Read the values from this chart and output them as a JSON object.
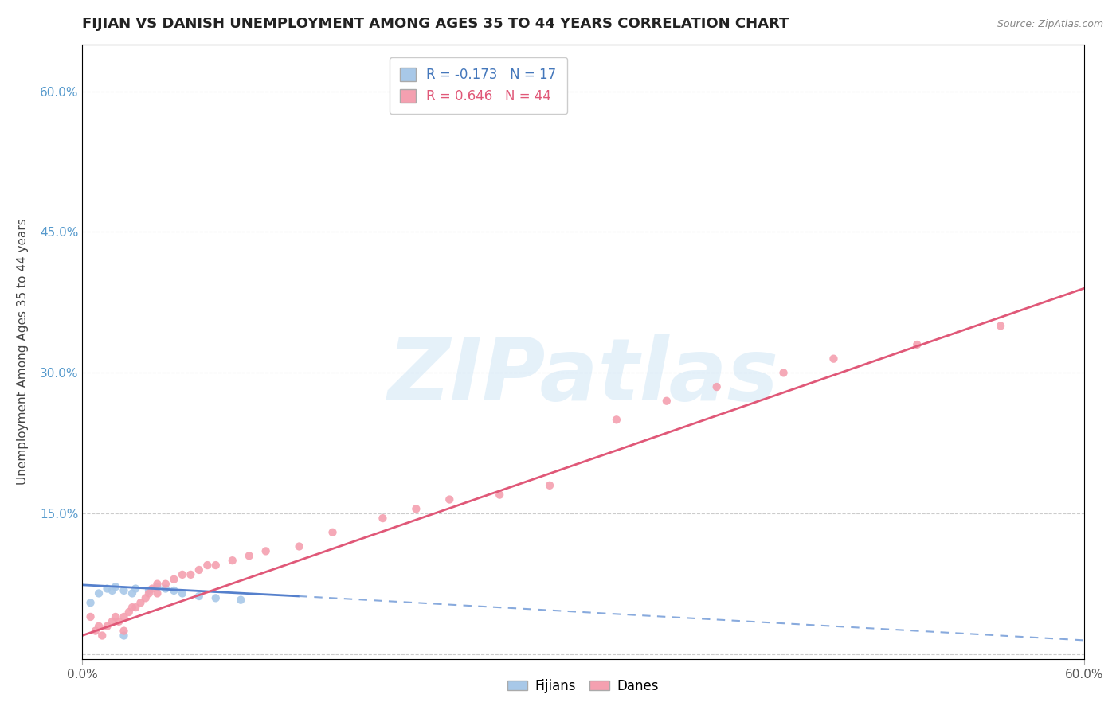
{
  "title": "FIJIAN VS DANISH UNEMPLOYMENT AMONG AGES 35 TO 44 YEARS CORRELATION CHART",
  "source_text": "Source: ZipAtlas.com",
  "ylabel": "Unemployment Among Ages 35 to 44 years",
  "xlim": [
    0.0,
    0.6
  ],
  "ylim": [
    -0.005,
    0.65
  ],
  "ytick_positions": [
    0.0,
    0.15,
    0.3,
    0.45,
    0.6
  ],
  "ytick_labels": [
    "",
    "15.0%",
    "30.0%",
    "45.0%",
    "60.0%"
  ],
  "fijian_color": "#a8c8e8",
  "dane_color": "#f4a0b0",
  "fijian_line_color": "#5580cc",
  "dane_line_color": "#e05878",
  "fijian_dashed_line_color": "#88aadd",
  "fijian_R": -0.173,
  "fijian_N": 17,
  "dane_R": 0.646,
  "dane_N": 44,
  "fijian_points": [
    [
      0.005,
      0.055
    ],
    [
      0.01,
      0.065
    ],
    [
      0.015,
      0.07
    ],
    [
      0.018,
      0.068
    ],
    [
      0.02,
      0.072
    ],
    [
      0.025,
      0.068
    ],
    [
      0.03,
      0.065
    ],
    [
      0.032,
      0.07
    ],
    [
      0.04,
      0.068
    ],
    [
      0.045,
      0.072
    ],
    [
      0.05,
      0.07
    ],
    [
      0.055,
      0.068
    ],
    [
      0.06,
      0.065
    ],
    [
      0.07,
      0.062
    ],
    [
      0.08,
      0.06
    ],
    [
      0.095,
      0.058
    ],
    [
      0.025,
      0.02
    ]
  ],
  "dane_points": [
    [
      0.005,
      0.04
    ],
    [
      0.008,
      0.025
    ],
    [
      0.01,
      0.03
    ],
    [
      0.012,
      0.02
    ],
    [
      0.015,
      0.03
    ],
    [
      0.018,
      0.035
    ],
    [
      0.02,
      0.04
    ],
    [
      0.022,
      0.035
    ],
    [
      0.025,
      0.04
    ],
    [
      0.025,
      0.025
    ],
    [
      0.028,
      0.045
    ],
    [
      0.03,
      0.05
    ],
    [
      0.032,
      0.05
    ],
    [
      0.035,
      0.055
    ],
    [
      0.038,
      0.06
    ],
    [
      0.04,
      0.065
    ],
    [
      0.042,
      0.07
    ],
    [
      0.045,
      0.065
    ],
    [
      0.045,
      0.075
    ],
    [
      0.05,
      0.075
    ],
    [
      0.055,
      0.08
    ],
    [
      0.06,
      0.085
    ],
    [
      0.065,
      0.085
    ],
    [
      0.07,
      0.09
    ],
    [
      0.075,
      0.095
    ],
    [
      0.08,
      0.095
    ],
    [
      0.09,
      0.1
    ],
    [
      0.1,
      0.105
    ],
    [
      0.11,
      0.11
    ],
    [
      0.13,
      0.115
    ],
    [
      0.15,
      0.13
    ],
    [
      0.18,
      0.145
    ],
    [
      0.2,
      0.155
    ],
    [
      0.22,
      0.165
    ],
    [
      0.25,
      0.17
    ],
    [
      0.28,
      0.18
    ],
    [
      0.32,
      0.25
    ],
    [
      0.35,
      0.27
    ],
    [
      0.38,
      0.285
    ],
    [
      0.42,
      0.3
    ],
    [
      0.45,
      0.315
    ],
    [
      0.5,
      0.33
    ],
    [
      0.55,
      0.35
    ],
    [
      0.22,
      0.63
    ]
  ],
  "watermark_text": "ZIPatlas",
  "background_color": "#ffffff",
  "grid_color": "#cccccc",
  "title_fontsize": 13,
  "axis_label_fontsize": 11,
  "tick_fontsize": 11,
  "legend_fontsize": 12
}
